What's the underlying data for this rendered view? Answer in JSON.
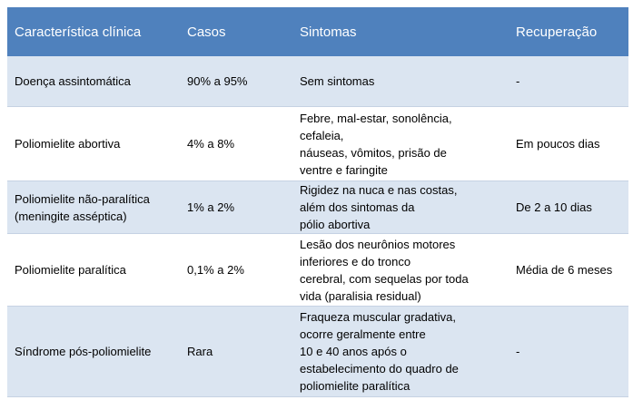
{
  "table": {
    "header": [
      "Característica clínica",
      "Casos",
      "Sintomas",
      "Recuperação"
    ],
    "rows": [
      [
        "Doença assintomática",
        "90% a 95%",
        "Sem sintomas",
        "-"
      ],
      [
        "Poliomielite abortiva",
        "4% a 8%",
        "Febre, mal-estar, sonolência,\ncefaleia,\nnáuseas, vômitos, prisão de\nventre e faringite",
        "Em poucos dias"
      ],
      [
        "Poliomielite não-paralítica\n(meningite asséptica)",
        "1% a 2%",
        "Rigidez na nuca e nas costas,\nalém dos sintomas da\npólio abortiva",
        "De 2 a 10 dias"
      ],
      [
        "Poliomielite paralítica",
        "0,1% a 2%",
        "Lesão dos neurônios motores\ninferiores e do tronco\ncerebral, com sequelas por toda\nvida (paralisia residual)",
        "Média de 6 meses"
      ],
      [
        "Síndrome pós-poliomielite",
        "Rara",
        "Fraqueza muscular gradativa,\nocorre geralmente entre\n10 e 40 anos após o\nestabelecimento do quadro de\npoliomielite paralítica",
        "-"
      ]
    ]
  }
}
